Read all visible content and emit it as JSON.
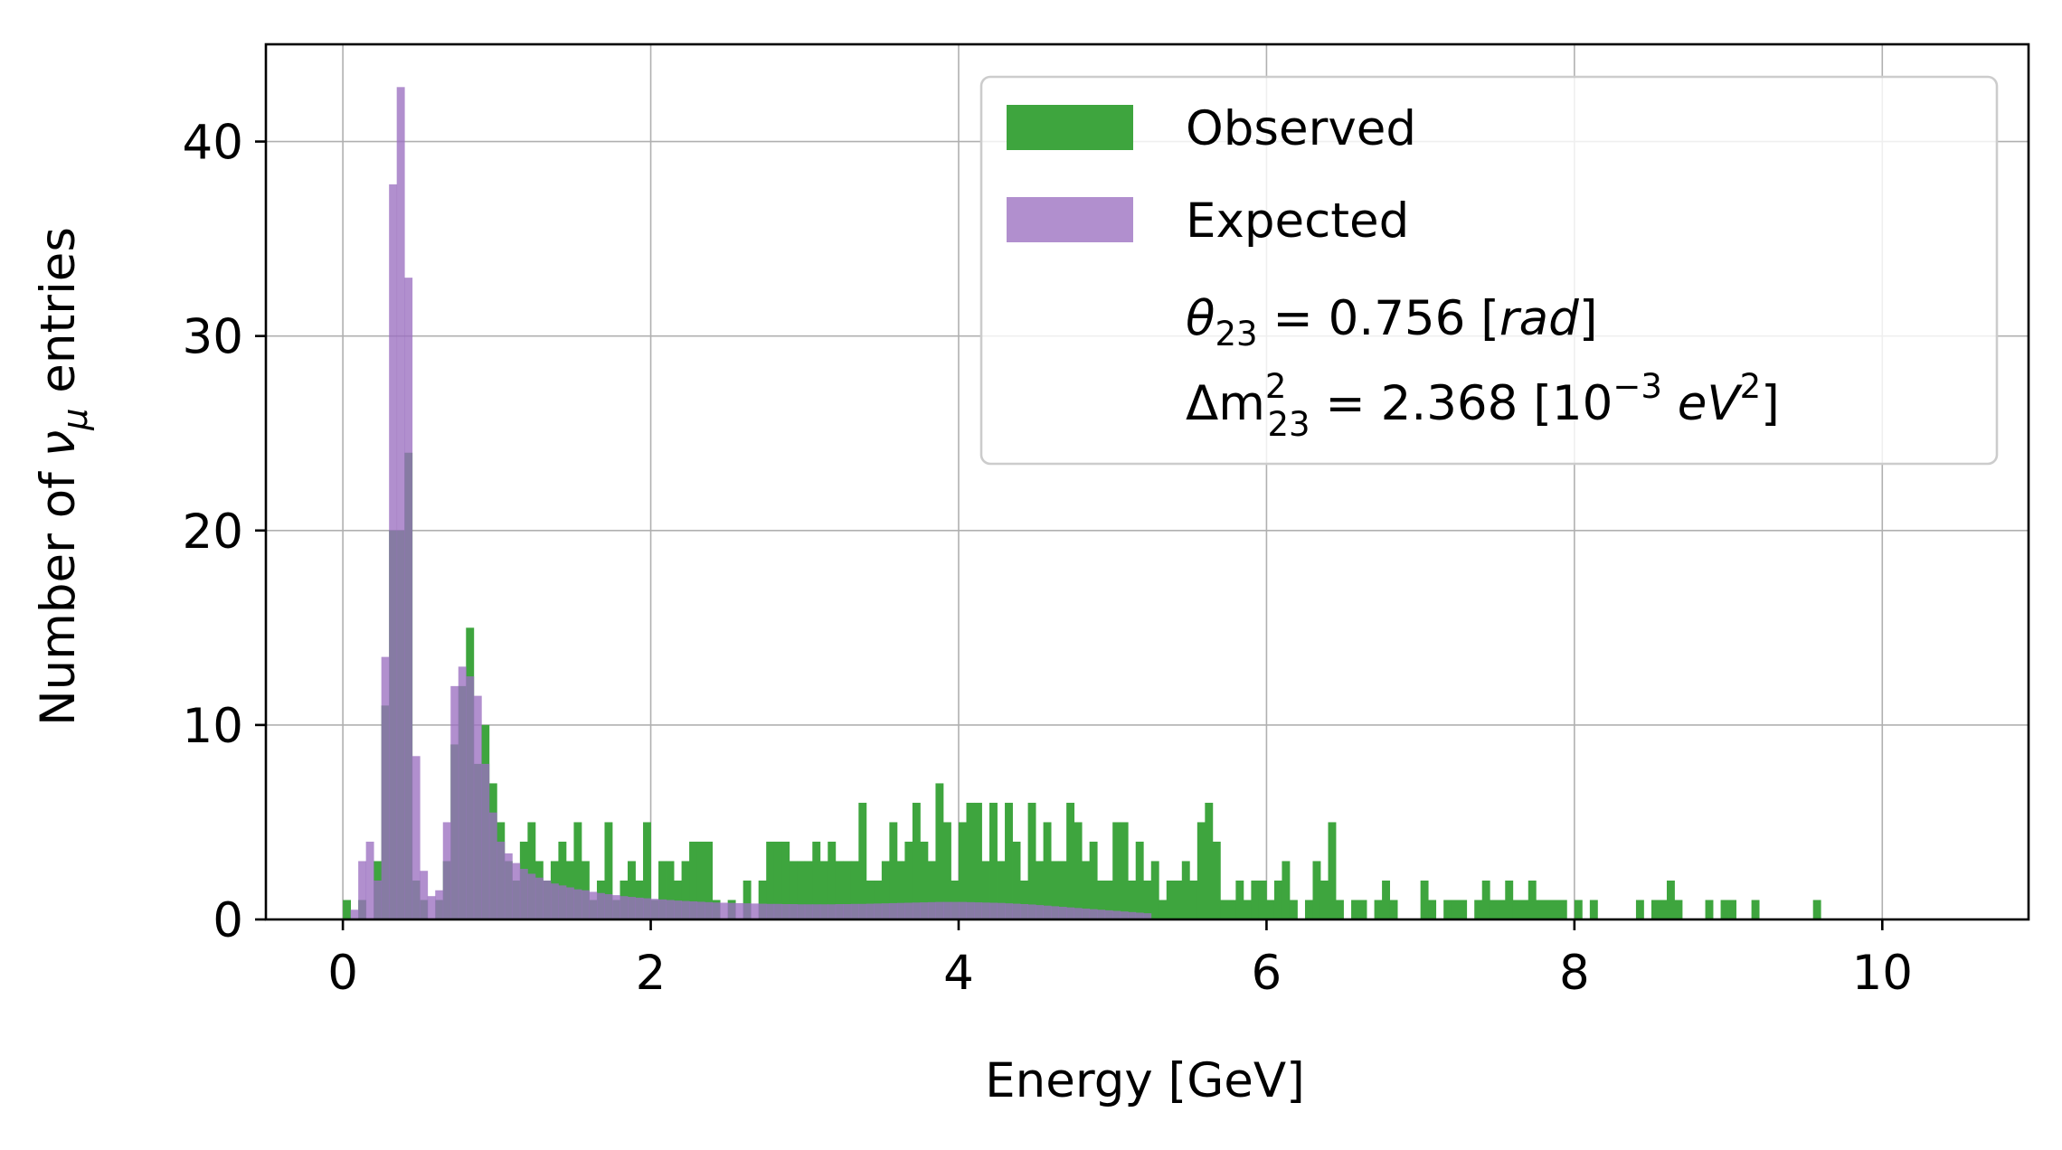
{
  "chart_data": {
    "type": "bar",
    "subtype": "overlaid-histogram",
    "title": "",
    "xlabel": "Energy [GeV]",
    "ylabel_parts": {
      "prefix": "Number of ",
      "nu": "ν",
      "mu": "μ",
      "suffix": " entries"
    },
    "xlim": [
      -0.5,
      10.95
    ],
    "ylim": [
      0,
      45
    ],
    "xticks": [
      0,
      2,
      4,
      6,
      8,
      10
    ],
    "xtick_labels": [
      "0",
      "2",
      "4",
      "6",
      "8",
      "10"
    ],
    "yticks": [
      0,
      10,
      20,
      30,
      40
    ],
    "ytick_labels": [
      "0",
      "10",
      "20",
      "30",
      "40"
    ],
    "grid": true,
    "legend_position": "top-right",
    "bin_start": 0,
    "bin_width": 0.05,
    "series": [
      {
        "name": "Observed",
        "color": "#3ea53e",
        "opacity": 1.0,
        "bins": [
          [
            0,
            1
          ],
          [
            0.05,
            0
          ],
          [
            0.1,
            1
          ],
          [
            0.15,
            0
          ],
          [
            0.2,
            3
          ],
          [
            0.25,
            11
          ],
          [
            0.3,
            20
          ],
          [
            0.35,
            20
          ],
          [
            0.4,
            24
          ],
          [
            0.45,
            2
          ],
          [
            0.5,
            1
          ],
          [
            0.55,
            0
          ],
          [
            0.6,
            1
          ],
          [
            0.65,
            3
          ],
          [
            0.7,
            9
          ],
          [
            0.75,
            12
          ],
          [
            0.8,
            15
          ],
          [
            0.85,
            8
          ],
          [
            0.9,
            10
          ],
          [
            0.95,
            7
          ],
          [
            1.0,
            5
          ],
          [
            1.05,
            3
          ],
          [
            1.1,
            2
          ],
          [
            1.15,
            4
          ],
          [
            1.2,
            5
          ],
          [
            1.25,
            3
          ],
          [
            1.3,
            2
          ],
          [
            1.35,
            3
          ],
          [
            1.4,
            4
          ],
          [
            1.45,
            3
          ],
          [
            1.5,
            5
          ],
          [
            1.55,
            3
          ],
          [
            1.6,
            1
          ],
          [
            1.65,
            2
          ],
          [
            1.7,
            5
          ],
          [
            1.75,
            1
          ],
          [
            1.8,
            2
          ],
          [
            1.85,
            3
          ],
          [
            1.9,
            2
          ],
          [
            1.95,
            5
          ],
          [
            2.0,
            1
          ],
          [
            2.05,
            3
          ],
          [
            2.1,
            3
          ],
          [
            2.15,
            2
          ],
          [
            2.2,
            3
          ],
          [
            2.25,
            4
          ],
          [
            2.3,
            4
          ],
          [
            2.35,
            4
          ],
          [
            2.4,
            1
          ],
          [
            2.45,
            0
          ],
          [
            2.5,
            1
          ],
          [
            2.55,
            0
          ],
          [
            2.6,
            2
          ],
          [
            2.65,
            0
          ],
          [
            2.7,
            2
          ],
          [
            2.75,
            4
          ],
          [
            2.8,
            4
          ],
          [
            2.85,
            4
          ],
          [
            2.9,
            3
          ],
          [
            2.95,
            3
          ],
          [
            3.0,
            3
          ],
          [
            3.05,
            4
          ],
          [
            3.1,
            3
          ],
          [
            3.15,
            4
          ],
          [
            3.2,
            3
          ],
          [
            3.25,
            3
          ],
          [
            3.3,
            3
          ],
          [
            3.35,
            6
          ],
          [
            3.4,
            2
          ],
          [
            3.45,
            2
          ],
          [
            3.5,
            3
          ],
          [
            3.55,
            5
          ],
          [
            3.6,
            3
          ],
          [
            3.65,
            4
          ],
          [
            3.7,
            6
          ],
          [
            3.75,
            4
          ],
          [
            3.8,
            3
          ],
          [
            3.85,
            7
          ],
          [
            3.9,
            5
          ],
          [
            3.95,
            2
          ],
          [
            4.0,
            5
          ],
          [
            4.05,
            6
          ],
          [
            4.1,
            6
          ],
          [
            4.15,
            3
          ],
          [
            4.2,
            6
          ],
          [
            4.25,
            3
          ],
          [
            4.3,
            6
          ],
          [
            4.35,
            4
          ],
          [
            4.4,
            2
          ],
          [
            4.45,
            6
          ],
          [
            4.5,
            3
          ],
          [
            4.55,
            5
          ],
          [
            4.6,
            3
          ],
          [
            4.65,
            3
          ],
          [
            4.7,
            6
          ],
          [
            4.75,
            5
          ],
          [
            4.8,
            3
          ],
          [
            4.85,
            4
          ],
          [
            4.9,
            2
          ],
          [
            4.95,
            2
          ],
          [
            5.0,
            5
          ],
          [
            5.05,
            5
          ],
          [
            5.1,
            2
          ],
          [
            5.15,
            4
          ],
          [
            5.2,
            2
          ],
          [
            5.25,
            3
          ],
          [
            5.3,
            1
          ],
          [
            5.35,
            2
          ],
          [
            5.4,
            2
          ],
          [
            5.45,
            3
          ],
          [
            5.5,
            2
          ],
          [
            5.55,
            5
          ],
          [
            5.6,
            6
          ],
          [
            5.65,
            4
          ],
          [
            5.7,
            1
          ],
          [
            5.75,
            1
          ],
          [
            5.8,
            2
          ],
          [
            5.85,
            1
          ],
          [
            5.9,
            2
          ],
          [
            5.95,
            2
          ],
          [
            6.0,
            1
          ],
          [
            6.05,
            2
          ],
          [
            6.1,
            3
          ],
          [
            6.15,
            1
          ],
          [
            6.2,
            0
          ],
          [
            6.25,
            1
          ],
          [
            6.3,
            3
          ],
          [
            6.35,
            2
          ],
          [
            6.4,
            5
          ],
          [
            6.45,
            1
          ],
          [
            6.5,
            0
          ],
          [
            6.55,
            1
          ],
          [
            6.6,
            1
          ],
          [
            6.65,
            0
          ],
          [
            6.7,
            1
          ],
          [
            6.75,
            2
          ],
          [
            6.8,
            1
          ],
          [
            6.85,
            0
          ],
          [
            6.9,
            0
          ],
          [
            6.95,
            0
          ],
          [
            7.0,
            2
          ],
          [
            7.05,
            1
          ],
          [
            7.1,
            0
          ],
          [
            7.15,
            1
          ],
          [
            7.2,
            1
          ],
          [
            7.25,
            1
          ],
          [
            7.3,
            0
          ],
          [
            7.35,
            1
          ],
          [
            7.4,
            2
          ],
          [
            7.45,
            1
          ],
          [
            7.5,
            1
          ],
          [
            7.55,
            2
          ],
          [
            7.6,
            1
          ],
          [
            7.65,
            1
          ],
          [
            7.7,
            2
          ],
          [
            7.75,
            1
          ],
          [
            7.8,
            1
          ],
          [
            7.85,
            1
          ],
          [
            7.9,
            1
          ],
          [
            7.95,
            0
          ],
          [
            8.0,
            1
          ],
          [
            8.05,
            0
          ],
          [
            8.1,
            1
          ],
          [
            8.15,
            0
          ],
          [
            8.2,
            0
          ],
          [
            8.25,
            0
          ],
          [
            8.3,
            0
          ],
          [
            8.35,
            0
          ],
          [
            8.4,
            1
          ],
          [
            8.45,
            0
          ],
          [
            8.5,
            1
          ],
          [
            8.55,
            1
          ],
          [
            8.6,
            2
          ],
          [
            8.65,
            1
          ],
          [
            8.7,
            0
          ],
          [
            8.75,
            0
          ],
          [
            8.8,
            0
          ],
          [
            8.85,
            1
          ],
          [
            8.9,
            0
          ],
          [
            8.95,
            1
          ],
          [
            9.0,
            1
          ],
          [
            9.05,
            0
          ],
          [
            9.1,
            0
          ],
          [
            9.15,
            1
          ],
          [
            9.2,
            0
          ],
          [
            9.25,
            0
          ],
          [
            9.3,
            0
          ],
          [
            9.35,
            0
          ],
          [
            9.4,
            0
          ],
          [
            9.45,
            0
          ],
          [
            9.5,
            0
          ],
          [
            9.55,
            1
          ]
        ]
      },
      {
        "name": "Expected",
        "color": "#9b70c0",
        "opacity": 0.78,
        "bins": [
          [
            0.05,
            0.5
          ],
          [
            0.1,
            3
          ],
          [
            0.15,
            4
          ],
          [
            0.2,
            2
          ],
          [
            0.25,
            13.5
          ],
          [
            0.3,
            37.8
          ],
          [
            0.35,
            42.8
          ],
          [
            0.4,
            33
          ],
          [
            0.45,
            8.4
          ],
          [
            0.5,
            2.5
          ],
          [
            0.55,
            1.2
          ],
          [
            0.6,
            1.5
          ],
          [
            0.65,
            5
          ],
          [
            0.7,
            12
          ],
          [
            0.75,
            13
          ],
          [
            0.8,
            12.5
          ],
          [
            0.85,
            11.5
          ],
          [
            0.9,
            8
          ],
          [
            0.95,
            5.5
          ],
          [
            1.0,
            4
          ],
          [
            1.05,
            3.4
          ],
          [
            1.1,
            2.9
          ],
          [
            1.15,
            2.6
          ],
          [
            1.2,
            2.35
          ],
          [
            1.25,
            2.15
          ],
          [
            1.3,
            2.0
          ],
          [
            1.35,
            1.85
          ],
          [
            1.4,
            1.75
          ],
          [
            1.45,
            1.65
          ],
          [
            1.5,
            1.55
          ],
          [
            1.55,
            1.5
          ],
          [
            1.6,
            1.42
          ],
          [
            1.65,
            1.36
          ],
          [
            1.7,
            1.3
          ],
          [
            1.75,
            1.25
          ],
          [
            1.8,
            1.2
          ],
          [
            1.85,
            1.16
          ],
          [
            1.9,
            1.12
          ],
          [
            1.95,
            1.09
          ],
          [
            2.0,
            1.06
          ],
          [
            2.05,
            1.03
          ],
          [
            2.1,
            1.0
          ],
          [
            2.15,
            0.97
          ],
          [
            2.2,
            0.95
          ],
          [
            2.25,
            0.93
          ],
          [
            2.3,
            0.91
          ],
          [
            2.35,
            0.89
          ],
          [
            2.4,
            0.87
          ],
          [
            2.45,
            0.86
          ],
          [
            2.5,
            0.85
          ],
          [
            2.55,
            0.84
          ],
          [
            2.6,
            0.83
          ],
          [
            2.65,
            0.82
          ],
          [
            2.7,
            0.81
          ],
          [
            2.75,
            0.8
          ],
          [
            2.8,
            0.8
          ],
          [
            2.85,
            0.79
          ],
          [
            2.9,
            0.79
          ],
          [
            2.95,
            0.78
          ],
          [
            3.0,
            0.78
          ],
          [
            3.05,
            0.78
          ],
          [
            3.1,
            0.78
          ],
          [
            3.15,
            0.78
          ],
          [
            3.2,
            0.79
          ],
          [
            3.25,
            0.79
          ],
          [
            3.3,
            0.8
          ],
          [
            3.35,
            0.8
          ],
          [
            3.4,
            0.81
          ],
          [
            3.45,
            0.82
          ],
          [
            3.5,
            0.83
          ],
          [
            3.55,
            0.84
          ],
          [
            3.6,
            0.85
          ],
          [
            3.65,
            0.86
          ],
          [
            3.7,
            0.87
          ],
          [
            3.75,
            0.88
          ],
          [
            3.8,
            0.89
          ],
          [
            3.85,
            0.9
          ],
          [
            3.9,
            0.9
          ],
          [
            3.95,
            0.9
          ],
          [
            4.0,
            0.9
          ],
          [
            4.05,
            0.89
          ],
          [
            4.1,
            0.88
          ],
          [
            4.15,
            0.87
          ],
          [
            4.2,
            0.86
          ],
          [
            4.25,
            0.85
          ],
          [
            4.3,
            0.83
          ],
          [
            4.35,
            0.81
          ],
          [
            4.4,
            0.79
          ],
          [
            4.45,
            0.77
          ],
          [
            4.5,
            0.74
          ],
          [
            4.55,
            0.71
          ],
          [
            4.6,
            0.68
          ],
          [
            4.65,
            0.65
          ],
          [
            4.7,
            0.62
          ],
          [
            4.75,
            0.59
          ],
          [
            4.8,
            0.56
          ],
          [
            4.85,
            0.53
          ],
          [
            4.9,
            0.5
          ],
          [
            4.95,
            0.47
          ],
          [
            5.0,
            0.44
          ],
          [
            5.05,
            0.41
          ],
          [
            5.1,
            0.38
          ],
          [
            5.15,
            0.35
          ],
          [
            5.2,
            0.32
          ]
        ]
      }
    ],
    "legend": {
      "line1_prefix": "θ",
      "line1_sub": "23",
      "line1_mid": " = 0.756 [",
      "line1_unit": "rad",
      "line1_end": "]",
      "line2_prefix": "Δm",
      "line2_sup": "2",
      "line2_sub": "23",
      "line2_mid": " = 2.368 [10",
      "line2_exp": "−3",
      "line2_unit_e": " eV",
      "line2_unit_sup": "2",
      "line2_end": "]"
    }
  }
}
